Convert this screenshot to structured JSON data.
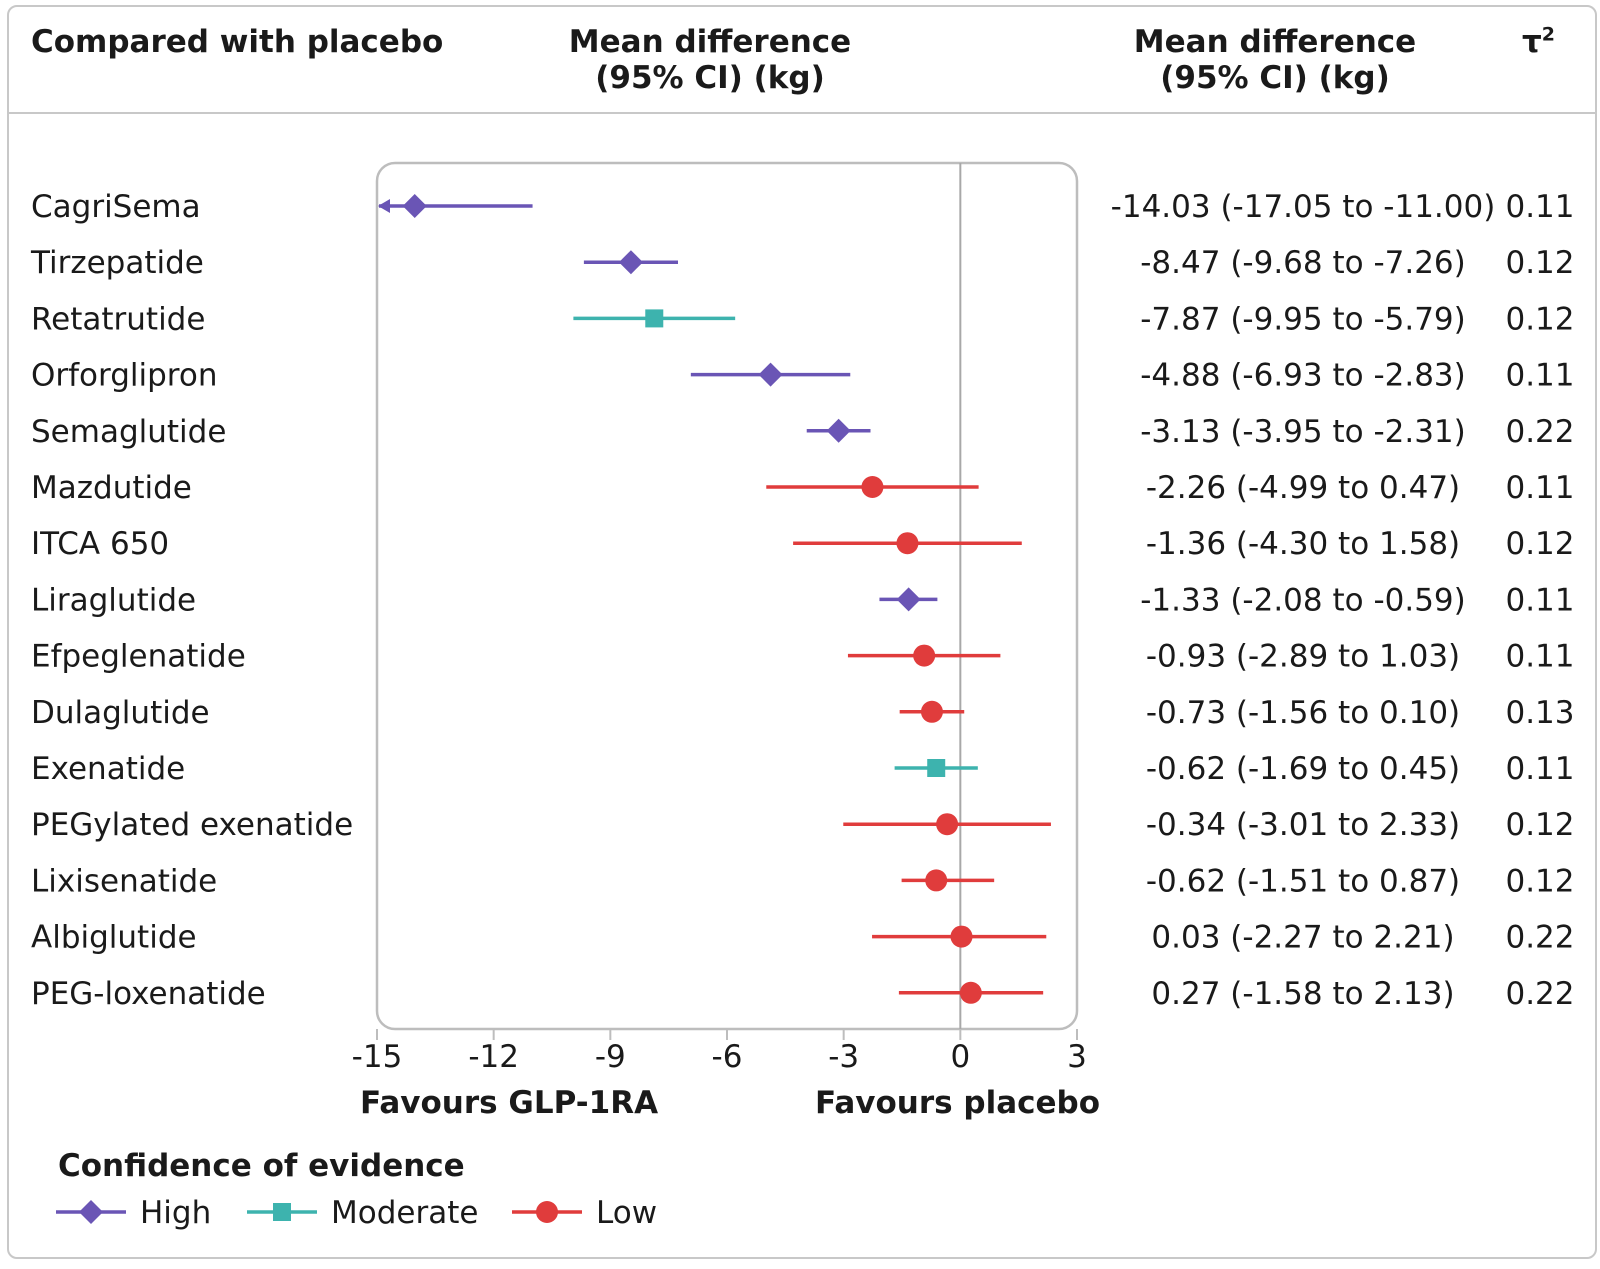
{
  "header": {
    "col1": "Compared with placebo",
    "col2_line1": "Mean difference",
    "col2_line2": "(95% CI) (kg)",
    "col3_line1": "Mean difference",
    "col3_line2": "(95% CI) (kg)",
    "col4": "τ",
    "col4_sup": "2"
  },
  "axis": {
    "ticks": [
      "-15",
      "-12",
      "-9",
      "-6",
      "-3",
      "0",
      "3"
    ],
    "favours_left": "Favours GLP-1RA",
    "favours_right": "Favours placebo"
  },
  "legend": {
    "title": "Confidence of evidence",
    "items": [
      {
        "label": "High",
        "shape": "diamond",
        "color": "#6a55b5"
      },
      {
        "label": "Moderate",
        "shape": "square",
        "color": "#3db3ae"
      },
      {
        "label": "Low",
        "shape": "circle",
        "color": "#e03c3c"
      }
    ]
  },
  "chart_data": {
    "type": "forest",
    "xlim": [
      -15,
      3
    ],
    "reference_line": 0,
    "rows": [
      {
        "name": "CagriSema",
        "est": -14.03,
        "lo": -17.05,
        "hi": -11.0,
        "text": "-14.03 (-17.05 to -11.00)",
        "tau2": "0.11",
        "conf": "high",
        "lo_truncated": true
      },
      {
        "name": "Tirzepatide",
        "est": -8.47,
        "lo": -9.68,
        "hi": -7.26,
        "text": "-8.47 (-9.68 to -7.26)",
        "tau2": "0.12",
        "conf": "high"
      },
      {
        "name": "Retatrutide",
        "est": -7.87,
        "lo": -9.95,
        "hi": -5.79,
        "text": "-7.87 (-9.95 to -5.79)",
        "tau2": "0.12",
        "conf": "moderate"
      },
      {
        "name": "Orforglipron",
        "est": -4.88,
        "lo": -6.93,
        "hi": -2.83,
        "text": "-4.88 (-6.93 to -2.83)",
        "tau2": "0.11",
        "conf": "high"
      },
      {
        "name": "Semaglutide",
        "est": -3.13,
        "lo": -3.95,
        "hi": -2.31,
        "text": "-3.13 (-3.95 to -2.31)",
        "tau2": "0.22",
        "conf": "high"
      },
      {
        "name": "Mazdutide",
        "est": -2.26,
        "lo": -4.99,
        "hi": 0.47,
        "text": "-2.26 (-4.99 to 0.47)",
        "tau2": "0.11",
        "conf": "low"
      },
      {
        "name": "ITCA 650",
        "est": -1.36,
        "lo": -4.3,
        "hi": 1.58,
        "text": "-1.36 (-4.30 to 1.58)",
        "tau2": "0.12",
        "conf": "low"
      },
      {
        "name": "Liraglutide",
        "est": -1.33,
        "lo": -2.08,
        "hi": -0.59,
        "text": "-1.33 (-2.08 to -0.59)",
        "tau2": "0.11",
        "conf": "high"
      },
      {
        "name": "Efpeglenatide",
        "est": -0.93,
        "lo": -2.89,
        "hi": 1.03,
        "text": "-0.93 (-2.89 to 1.03)",
        "tau2": "0.11",
        "conf": "low"
      },
      {
        "name": "Dulaglutide",
        "est": -0.73,
        "lo": -1.56,
        "hi": 0.1,
        "text": "-0.73 (-1.56 to 0.10)",
        "tau2": "0.13",
        "conf": "low"
      },
      {
        "name": "Exenatide",
        "est": -0.62,
        "lo": -1.69,
        "hi": 0.45,
        "text": "-0.62 (-1.69 to 0.45)",
        "tau2": "0.11",
        "conf": "moderate"
      },
      {
        "name": "PEGylated exenatide",
        "est": -0.34,
        "lo": -3.01,
        "hi": 2.33,
        "text": "-0.34 (-3.01 to 2.33)",
        "tau2": "0.12",
        "conf": "low"
      },
      {
        "name": "Lixisenatide",
        "est": -0.62,
        "lo": -1.51,
        "hi": 0.87,
        "text": "-0.62 (-1.51 to 0.87)",
        "tau2": "0.12",
        "conf": "low"
      },
      {
        "name": "Albiglutide",
        "est": 0.03,
        "lo": -2.27,
        "hi": 2.21,
        "text": "0.03 (-2.27 to 2.21)",
        "tau2": "0.22",
        "conf": "low"
      },
      {
        "name": "PEG-loxenatide",
        "est": 0.27,
        "lo": -1.58,
        "hi": 2.13,
        "text": "0.27 (-1.58 to 2.13)",
        "tau2": "0.22",
        "conf": "low"
      }
    ]
  },
  "colors": {
    "high": "#6a55b5",
    "moderate": "#3db3ae",
    "low": "#e03c3c",
    "frame": "#bdbdbd",
    "reference": "#a8a8a8"
  }
}
